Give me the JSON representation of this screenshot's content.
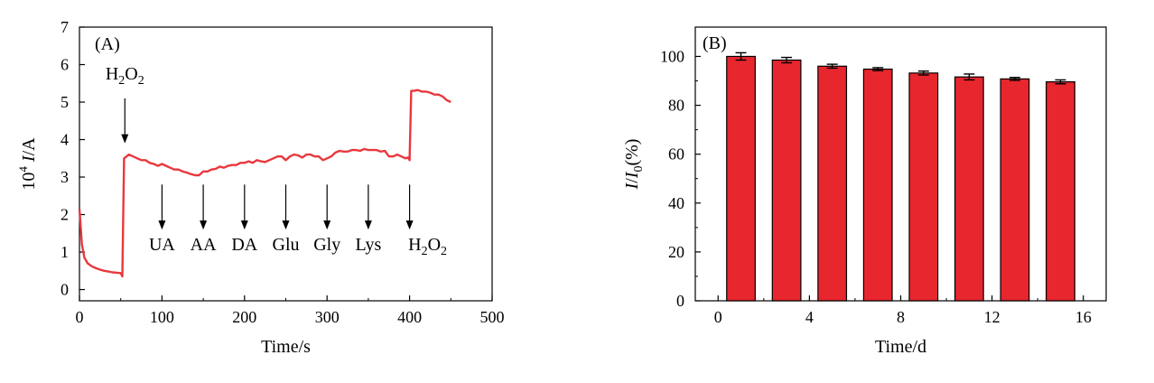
{
  "chart_data": [
    {
      "type": "line",
      "panel_label": "(A)",
      "xlabel": "Time/s",
      "ylabel": {
        "prefix": "10",
        "exp": "4",
        "var": "I",
        "unit": "/A"
      },
      "xlim": [
        0,
        500
      ],
      "ylim": [
        -0.3,
        7
      ],
      "xticks": [
        0,
        100,
        200,
        300,
        400,
        500
      ],
      "yticks": [
        0,
        1,
        2,
        3,
        4,
        5,
        6,
        7
      ],
      "line_color": "#e8383d",
      "series": [
        {
          "x": [
            0,
            3,
            6,
            10,
            15,
            20,
            25,
            30,
            35,
            40,
            45,
            50,
            52,
            54,
            57,
            60,
            65,
            70,
            75,
            80,
            85,
            90,
            95,
            100,
            105,
            110,
            115,
            120,
            125,
            130,
            135,
            140,
            145,
            150,
            155,
            160,
            165,
            170,
            175,
            180,
            185,
            190,
            195,
            200,
            205,
            210,
            215,
            220,
            225,
            230,
            235,
            240,
            245,
            250,
            255,
            260,
            265,
            270,
            275,
            280,
            285,
            290,
            295,
            300,
            305,
            310,
            315,
            320,
            325,
            330,
            335,
            340,
            345,
            350,
            355,
            360,
            365,
            370,
            375,
            380,
            385,
            390,
            395,
            398,
            400,
            402,
            405,
            410,
            415,
            420,
            425,
            430,
            435,
            440,
            445,
            450
          ],
          "y": [
            2.15,
            1.2,
            0.85,
            0.7,
            0.62,
            0.57,
            0.53,
            0.5,
            0.48,
            0.46,
            0.45,
            0.44,
            0.35,
            3.5,
            3.55,
            3.6,
            3.55,
            3.5,
            3.45,
            3.45,
            3.38,
            3.35,
            3.3,
            3.35,
            3.3,
            3.25,
            3.2,
            3.2,
            3.15,
            3.12,
            3.08,
            3.05,
            3.05,
            3.15,
            3.15,
            3.2,
            3.22,
            3.28,
            3.25,
            3.3,
            3.32,
            3.32,
            3.38,
            3.38,
            3.42,
            3.38,
            3.45,
            3.42,
            3.4,
            3.45,
            3.5,
            3.55,
            3.55,
            3.45,
            3.55,
            3.6,
            3.58,
            3.52,
            3.6,
            3.6,
            3.55,
            3.55,
            3.45,
            3.5,
            3.55,
            3.65,
            3.7,
            3.68,
            3.68,
            3.72,
            3.72,
            3.7,
            3.75,
            3.72,
            3.72,
            3.72,
            3.68,
            3.7,
            3.55,
            3.55,
            3.6,
            3.55,
            3.5,
            3.52,
            3.45,
            5.3,
            5.3,
            5.32,
            5.28,
            5.28,
            5.25,
            5.2,
            5.2,
            5.15,
            5.05,
            5.0
          ]
        }
      ],
      "annotations": [
        {
          "text": "H2O2",
          "x": 55,
          "label_y": 5.6,
          "arrow_from": 5.1,
          "arrow_to": 3.9,
          "subscript": true
        },
        {
          "text": "UA",
          "x": 100,
          "label_y": 1.05,
          "arrow_from": 2.8,
          "arrow_to": 1.6
        },
        {
          "text": "AA",
          "x": 150,
          "label_y": 1.05,
          "arrow_from": 2.8,
          "arrow_to": 1.6
        },
        {
          "text": "DA",
          "x": 200,
          "label_y": 1.05,
          "arrow_from": 2.8,
          "arrow_to": 1.6
        },
        {
          "text": "Glu",
          "x": 250,
          "label_y": 1.05,
          "arrow_from": 2.8,
          "arrow_to": 1.6
        },
        {
          "text": "Gly",
          "x": 300,
          "label_y": 1.05,
          "arrow_from": 2.8,
          "arrow_to": 1.6
        },
        {
          "text": "Lys",
          "x": 350,
          "label_y": 1.05,
          "arrow_from": 2.8,
          "arrow_to": 1.6
        },
        {
          "text": "H2O2",
          "x": 400,
          "label_y": 1.05,
          "arrow_from": 2.8,
          "arrow_to": 1.6,
          "subscript": true
        }
      ]
    },
    {
      "type": "bar",
      "panel_label": "(B)",
      "xlabel": "Time/d",
      "ylabel": {
        "var1": "I",
        "sep": "/",
        "var2": "I",
        "sub": "0",
        "unit": "(%)"
      },
      "xlim": [
        -1,
        17
      ],
      "ylim": [
        0,
        112
      ],
      "xticks": [
        0,
        4,
        8,
        12,
        16
      ],
      "yticks": [
        0,
        20,
        40,
        60,
        80,
        100
      ],
      "bar_color": "#e8262d",
      "bar_width": 1.25,
      "x": [
        1,
        3,
        5,
        7,
        9,
        11,
        13,
        15
      ],
      "values": [
        100,
        98.5,
        96,
        94.8,
        93.2,
        91.6,
        90.8,
        89.6
      ],
      "errors": [
        1.5,
        1.1,
        0.8,
        0.6,
        0.8,
        1.2,
        0.6,
        0.8
      ]
    }
  ]
}
